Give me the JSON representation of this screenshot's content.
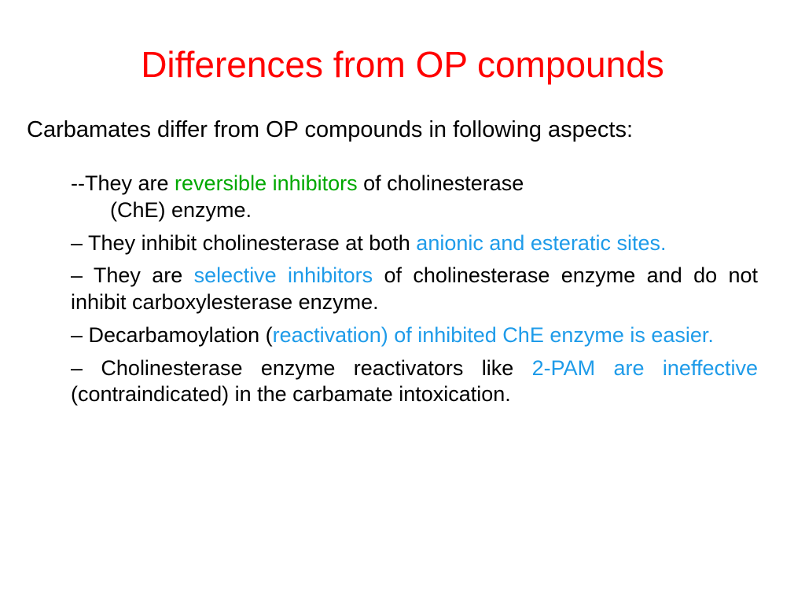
{
  "colors": {
    "title": "#ff0000",
    "body": "#000000",
    "green": "#00a800",
    "blue": "#1e9be9",
    "background": "#ffffff"
  },
  "fonts": {
    "title_size": 46,
    "intro_size": 29,
    "bullet_size": 27,
    "family": "Comic Sans MS"
  },
  "title": "Differences  from OP compounds",
  "intro": "Carbamates differ from OP compounds in following aspects:",
  "bullets": [
    {
      "dash": "--",
      "segments": [
        {
          "text": "They are ",
          "style": "body"
        },
        {
          "text": "reversible  inhibitors ",
          "style": "green"
        },
        {
          "text": "of cholinesterase",
          "style": "body"
        }
      ],
      "wrap_text": "(ChE) enzyme."
    },
    {
      "dash": "–",
      "segments": [
        {
          "text": " They inhibit cholinesterase at both ",
          "style": "body"
        },
        {
          "text": "anionic and esteratic sites.",
          "style": "blue"
        }
      ]
    },
    {
      "dash": "–",
      "segments": [
        {
          "text": " They are ",
          "style": "body"
        },
        {
          "text": "selective inhibitors",
          "style": "blue"
        },
        {
          "text": " of  cholinesterase enzyme and do not inhibit carboxylesterase enzyme.",
          "style": "body"
        }
      ]
    },
    {
      "dash": "–",
      "segments": [
        {
          "text": " Decarbamoylation (",
          "style": "body"
        },
        {
          "text": "reactivation) of inhibited ChE enzyme is easier.",
          "style": "blue"
        }
      ]
    },
    {
      "dash": "–",
      "segments": [
        {
          "text": " Cholinesterase enzyme reactivators like ",
          "style": "body"
        },
        {
          "text": "2-PAM are ineffective",
          "style": "blue"
        },
        {
          "text": " (contraindicated) in the carbamate intoxication.",
          "style": "body"
        }
      ]
    }
  ]
}
